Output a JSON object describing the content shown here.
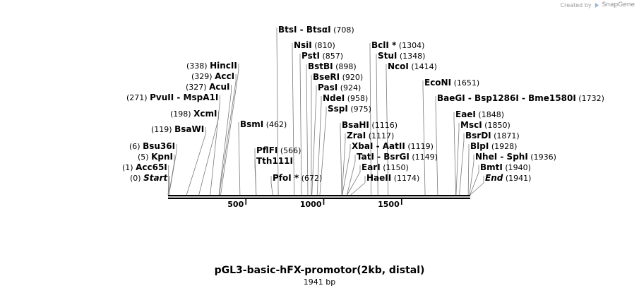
{
  "credit": {
    "created_by": "Created by",
    "brand": "SnapGene"
  },
  "map": {
    "title": "pGL3-basic-hFX-promotor(2kb, distal)",
    "subtitle": "1941 bp",
    "total_bp": 1941,
    "ticks": [
      {
        "pos": 500,
        "label": "500"
      },
      {
        "pos": 1000,
        "label": "1000"
      },
      {
        "pos": 1500,
        "label": "1500"
      }
    ],
    "sites": [
      {
        "id": "start",
        "names": [
          "Start"
        ],
        "pos_label": "(0)",
        "pos": 0,
        "italic": true
      },
      {
        "id": "acc65i",
        "names": [
          "Acc65I"
        ],
        "pos_label": "(1)",
        "pos": 1
      },
      {
        "id": "kpni",
        "names": [
          "KpnI"
        ],
        "pos_label": "(5)",
        "pos": 5
      },
      {
        "id": "bsu36i",
        "names": [
          "Bsu36I"
        ],
        "pos_label": "(6)",
        "pos": 6
      },
      {
        "id": "bsawi",
        "names": [
          "BsaWI"
        ],
        "pos_label": "(119)",
        "pos": 119
      },
      {
        "id": "xcmi",
        "names": [
          "XcmI"
        ],
        "pos_label": "(198)",
        "pos": 198
      },
      {
        "id": "pvuii",
        "names": [
          "PvuII",
          "MspA1I"
        ],
        "pos_label": "(271)",
        "pos": 271
      },
      {
        "id": "acui",
        "names": [
          "AcuI"
        ],
        "pos_label": "(327)",
        "pos": 327
      },
      {
        "id": "acci",
        "names": [
          "AccI"
        ],
        "pos_label": "(329)",
        "pos": 329
      },
      {
        "id": "hincii",
        "names": [
          "HincII"
        ],
        "pos_label": "(338)",
        "pos": 338
      },
      {
        "id": "bsmi",
        "names": [
          "BsmI"
        ],
        "pos_label": "(462)",
        "pos": 462
      },
      {
        "id": "tth111i",
        "names": [
          "Tth111I"
        ],
        "pos_label": "",
        "pos": 566
      },
      {
        "id": "pflfi",
        "names": [
          "PflFI"
        ],
        "pos_label": "(566)",
        "pos": 566
      },
      {
        "id": "pfoi",
        "names": [
          "PfoI *"
        ],
        "pos_label": "(672)",
        "pos": 672
      },
      {
        "id": "btsi",
        "names": [
          "BtsI",
          "BtsαI"
        ],
        "pos_label": "(708)",
        "pos": 708
      },
      {
        "id": "nsii",
        "names": [
          "NsiI"
        ],
        "pos_label": "(810)",
        "pos": 810
      },
      {
        "id": "psti",
        "names": [
          "PstI"
        ],
        "pos_label": "(857)",
        "pos": 857
      },
      {
        "id": "bstbi",
        "names": [
          "BstBI"
        ],
        "pos_label": "(898)",
        "pos": 898
      },
      {
        "id": "bseri",
        "names": [
          "BseRI"
        ],
        "pos_label": "(920)",
        "pos": 920
      },
      {
        "id": "pasi",
        "names": [
          "PasI"
        ],
        "pos_label": "(924)",
        "pos": 924
      },
      {
        "id": "ndei",
        "names": [
          "NdeI"
        ],
        "pos_label": "(958)",
        "pos": 958
      },
      {
        "id": "sspi",
        "names": [
          "SspI"
        ],
        "pos_label": "(975)",
        "pos": 975
      },
      {
        "id": "bsahi",
        "names": [
          "BsaHI"
        ],
        "pos_label": "(1116)",
        "pos": 1116
      },
      {
        "id": "zrai",
        "names": [
          "ZraI"
        ],
        "pos_label": "(1117)",
        "pos": 1117
      },
      {
        "id": "xbai",
        "names": [
          "XbaI",
          "AatII"
        ],
        "pos_label": "(1119)",
        "pos": 1119
      },
      {
        "id": "tati",
        "names": [
          "TatI",
          "BsrGI"
        ],
        "pos_label": "(1149)",
        "pos": 1149
      },
      {
        "id": "eari",
        "names": [
          "EarI"
        ],
        "pos_label": "(1150)",
        "pos": 1150
      },
      {
        "id": "haeii",
        "names": [
          "HaeII"
        ],
        "pos_label": "(1174)",
        "pos": 1174
      },
      {
        "id": "bcli",
        "names": [
          "BclI *"
        ],
        "pos_label": "(1304)",
        "pos": 1304
      },
      {
        "id": "stui",
        "names": [
          "StuI"
        ],
        "pos_label": "(1348)",
        "pos": 1348
      },
      {
        "id": "ncoi",
        "names": [
          "NcoI"
        ],
        "pos_label": "(1414)",
        "pos": 1414
      },
      {
        "id": "econi",
        "names": [
          "EcoNI"
        ],
        "pos_label": "(1651)",
        "pos": 1651
      },
      {
        "id": "baegi",
        "names": [
          "BaeGI",
          "Bsp1286I",
          "Bme1580I"
        ],
        "pos_label": "(1732)",
        "pos": 1732
      },
      {
        "id": "eaei",
        "names": [
          "EaeI"
        ],
        "pos_label": "(1848)",
        "pos": 1848
      },
      {
        "id": "msci",
        "names": [
          "MscI"
        ],
        "pos_label": "(1850)",
        "pos": 1850
      },
      {
        "id": "bsrdi",
        "names": [
          "BsrDI"
        ],
        "pos_label": "(1871)",
        "pos": 1871
      },
      {
        "id": "blpi",
        "names": [
          "BlpI"
        ],
        "pos_label": "(1928)",
        "pos": 1928
      },
      {
        "id": "nhei",
        "names": [
          "NheI",
          "SphI"
        ],
        "pos_label": "(1936)",
        "pos": 1936
      },
      {
        "id": "bmti",
        "names": [
          "BmtI"
        ],
        "pos_label": "(1940)",
        "pos": 1940
      },
      {
        "id": "end",
        "names": [
          "End"
        ],
        "pos_label": "(1941)",
        "pos": 1941,
        "italic": true
      }
    ]
  }
}
